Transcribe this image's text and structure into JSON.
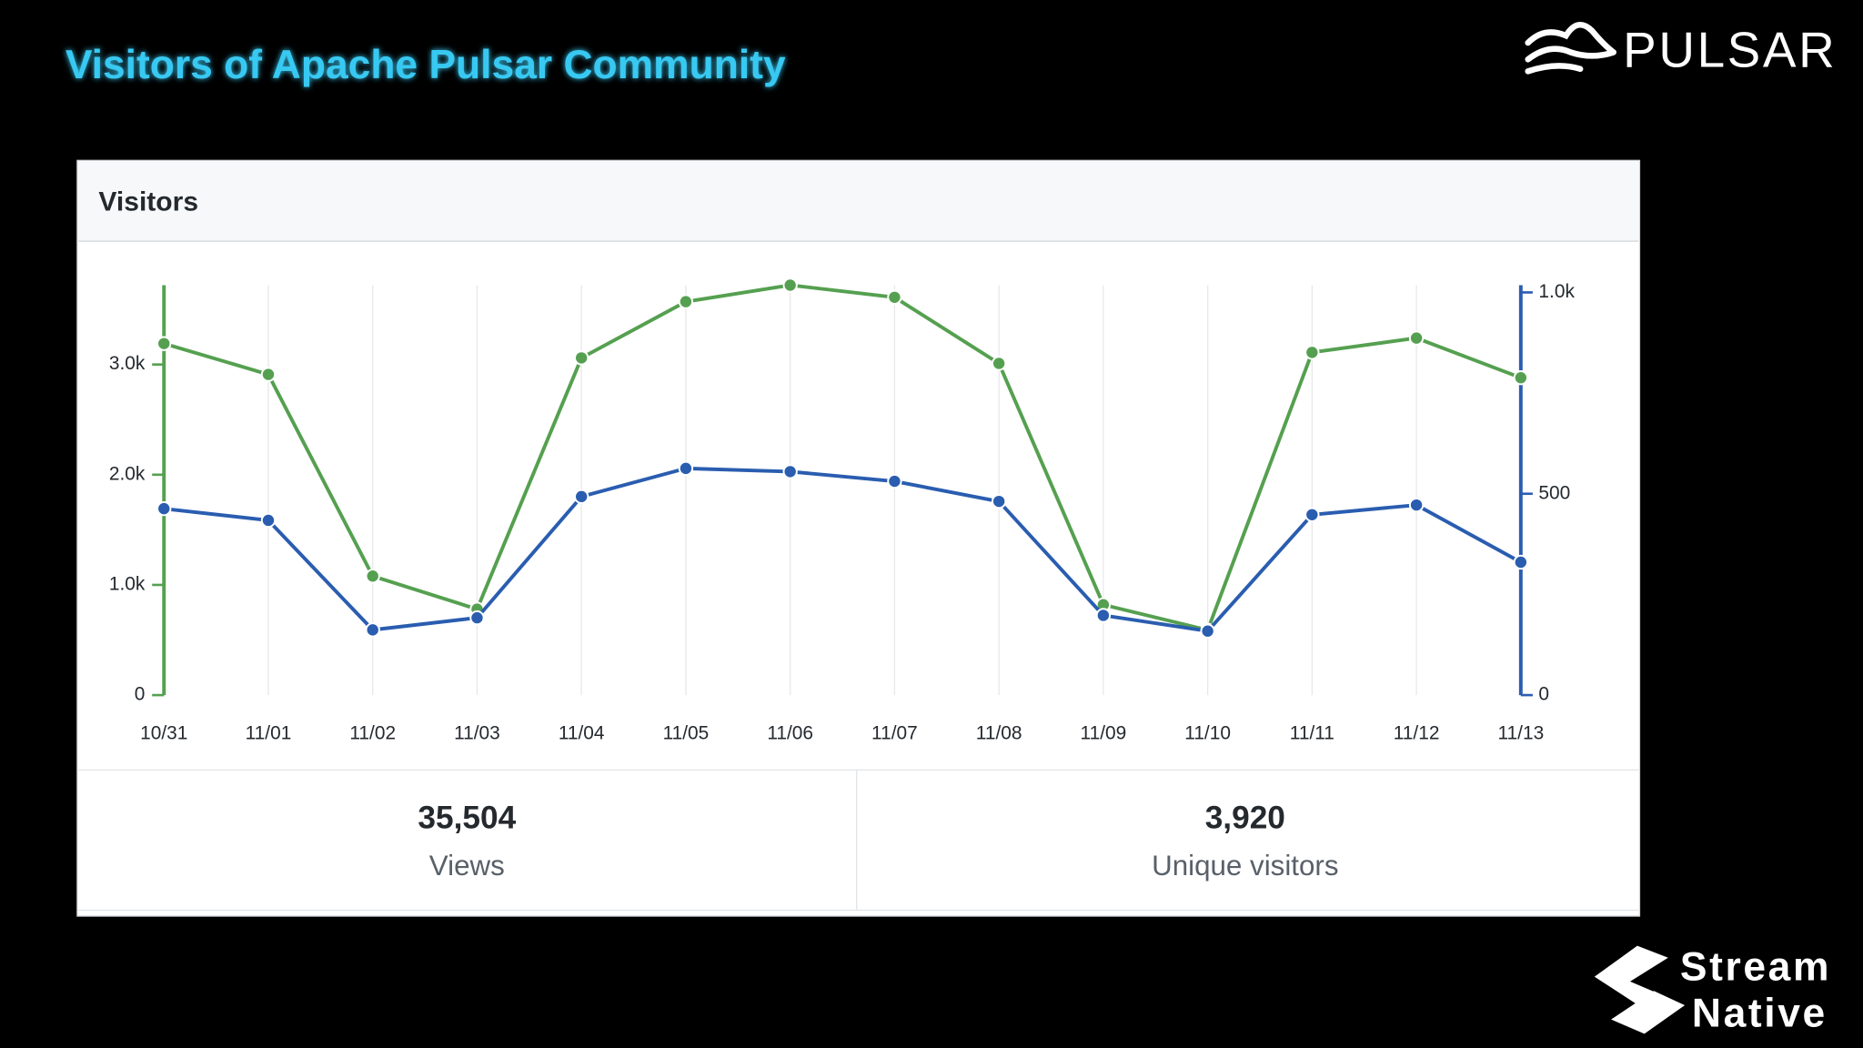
{
  "title": "Visitors of Apache Pulsar Community",
  "logos": [
    "PULSAR",
    "Stream",
    "Native"
  ],
  "summary": [
    {
      "value": "35,504",
      "label": "Views"
    },
    {
      "value": "3,920",
      "label": "Unique visitors"
    }
  ],
  "chart_data": {
    "type": "line",
    "title": "Visitors",
    "categories": [
      "10/31",
      "11/01",
      "11/02",
      "11/03",
      "11/04",
      "11/05",
      "11/06",
      "11/07",
      "11/08",
      "11/09",
      "11/10",
      "11/11",
      "11/12",
      "11/13"
    ],
    "series": [
      {
        "color": "#55a050",
        "values": [
          3190,
          2910,
          1080,
          780,
          3060,
          3570,
          3720,
          3610,
          3010,
          820,
          590,
          3110,
          3240,
          2880
        ]
      },
      {
        "color": "#2a5db0",
        "axis": "y2",
        "values": [
          463,
          434,
          162,
          192,
          493,
          563,
          555,
          531,
          481,
          198,
          159,
          448,
          472,
          330
        ]
      }
    ],
    "ylim": [
      0,
      3720
    ],
    "yticks": [
      0,
      {
        "value": 1000,
        "label": "1.0k"
      },
      {
        "value": 2000,
        "label": "2.0k"
      },
      {
        "value": 3000,
        "label": "3.0k"
      }
    ],
    "y2lim": [
      0,
      1018
    ],
    "y2ticks": [
      0,
      500,
      {
        "value": 1000,
        "label": "1.0k"
      }
    ],
    "grid": "x"
  }
}
